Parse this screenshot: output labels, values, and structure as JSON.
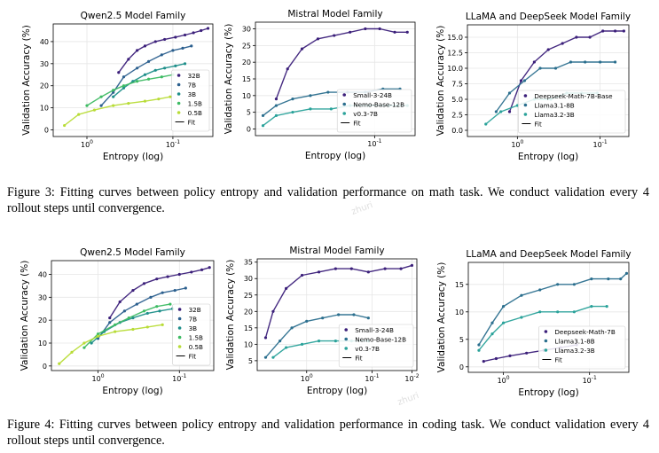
{
  "figures": [
    {
      "id": "fig3",
      "caption_label": "Figure 3:",
      "caption_text": "Fitting curves between policy entropy and validation performance on math task. We conduct validation every 4 rollout steps until convergence."
    },
    {
      "id": "fig4",
      "caption_label": "Figure 4:",
      "caption_text": "Fitting curves between policy entropy and validation performance in coding task. We conduct validation every 4 rollout steps until convergence."
    }
  ],
  "watermark": "zhuri",
  "chart_data": [
    {
      "id": "f3a",
      "type": "scatter",
      "title": "Qwen2.5 Model Family",
      "xlabel": "Entropy (log)",
      "ylabel": "Validation Accuracy (%)",
      "xscale": "log",
      "xlim": [
        0.065,
        0.5
      ],
      "ylim": [
        -3,
        48
      ],
      "xticks": [
        {
          "v": 0.1,
          "label": "10^0"
        },
        {
          "v": 0.3,
          "label": "10^-1"
        }
      ],
      "yticks": [
        0,
        10,
        20,
        30,
        40
      ],
      "legend": "right",
      "fit_label": "Fit",
      "series": [
        {
          "name": "32B",
          "color": "#3b1f7a",
          "x": [
            0.15,
            0.17,
            0.19,
            0.21,
            0.24,
            0.27,
            0.31,
            0.35,
            0.39,
            0.43,
            0.47
          ],
          "y": [
            26,
            32,
            36,
            38,
            40,
            41,
            42,
            43,
            44,
            45,
            46
          ]
        },
        {
          "name": "7B",
          "color": "#2b5f8e",
          "x": [
            0.12,
            0.14,
            0.16,
            0.19,
            0.22,
            0.26,
            0.3,
            0.34,
            0.38
          ],
          "y": [
            11,
            17,
            24,
            28,
            31,
            34,
            36,
            37,
            38
          ]
        },
        {
          "name": "3B",
          "color": "#1f8f8a",
          "x": [
            0.14,
            0.16,
            0.18,
            0.21,
            0.24,
            0.27,
            0.31,
            0.35
          ],
          "y": [
            15,
            19,
            22,
            25,
            27,
            28,
            29,
            30
          ]
        },
        {
          "name": "1.5B",
          "color": "#3dbb63",
          "x": [
            0.1,
            0.12,
            0.14,
            0.16,
            0.19,
            0.22,
            0.26,
            0.3
          ],
          "y": [
            11,
            15,
            18,
            20,
            22,
            23,
            24,
            25
          ]
        },
        {
          "name": "0.5B",
          "color": "#b8dc37",
          "x": [
            0.075,
            0.09,
            0.11,
            0.14,
            0.17,
            0.21,
            0.25,
            0.29
          ],
          "y": [
            2,
            7,
            9,
            11,
            12,
            13,
            14,
            15
          ]
        }
      ]
    },
    {
      "id": "f3b",
      "type": "scatter",
      "title": "Mistral Model Family",
      "xlabel": "Entropy (log)",
      "ylabel": "Validation Accuracy (%)",
      "xscale": "log",
      "xlim": [
        0.1,
        0.75
      ],
      "ylim": [
        -2,
        32
      ],
      "xticks": [
        {
          "v": 0.45,
          "label": "10^-1"
        }
      ],
      "yticks": [
        0,
        5,
        10,
        15,
        20,
        25,
        30
      ],
      "legend": "lower-right",
      "fit_label": "Fit",
      "series": [
        {
          "name": "Small-3-24B",
          "color": "#3b1f7a",
          "x": [
            0.13,
            0.15,
            0.18,
            0.22,
            0.27,
            0.33,
            0.4,
            0.48,
            0.58,
            0.68
          ],
          "y": [
            9,
            18,
            24,
            27,
            28,
            29,
            30,
            30,
            29,
            29
          ]
        },
        {
          "name": "Nemo-Base-12B",
          "color": "#2b6f8e",
          "x": [
            0.11,
            0.13,
            0.16,
            0.2,
            0.25,
            0.32,
            0.4,
            0.5,
            0.62
          ],
          "y": [
            4,
            7,
            9,
            10,
            11,
            11,
            11,
            12,
            12
          ]
        },
        {
          "name": "v0.3-7B",
          "color": "#2aa29a",
          "x": [
            0.11,
            0.13,
            0.16,
            0.2,
            0.26,
            0.33,
            0.42,
            0.54,
            0.68
          ],
          "y": [
            1,
            4,
            5,
            6,
            6,
            7,
            7,
            7,
            7
          ]
        }
      ]
    },
    {
      "id": "f3c",
      "type": "scatter",
      "title": "LLaMA and DeepSeek Model Family",
      "xlabel": "Entropy (log)",
      "ylabel": "Validation Accuracy (%)",
      "xscale": "log",
      "xlim": [
        0.12,
        0.85
      ],
      "ylim": [
        -1,
        17
      ],
      "xticks": [
        {
          "v": 0.22,
          "label": "10^0"
        },
        {
          "v": 0.6,
          "label": "10^-1"
        }
      ],
      "yticks": [
        0.0,
        2.5,
        5.0,
        7.5,
        10.0,
        12.5,
        15.0
      ],
      "legend": "lower-right",
      "fit_label": "Fit",
      "series": [
        {
          "name": "Deepseek-Math-7B-Base",
          "color": "#3b1f7a",
          "x": [
            0.2,
            0.23,
            0.27,
            0.32,
            0.38,
            0.45,
            0.53,
            0.62,
            0.72,
            0.8
          ],
          "y": [
            3,
            8,
            11,
            13,
            14,
            15,
            15,
            16,
            16,
            16
          ]
        },
        {
          "name": "Llama3.1-8B",
          "color": "#2b6f8e",
          "x": [
            0.17,
            0.2,
            0.24,
            0.29,
            0.35,
            0.42,
            0.5,
            0.6,
            0.72
          ],
          "y": [
            3,
            6,
            8,
            10,
            10,
            11,
            11,
            11,
            11
          ]
        },
        {
          "name": "Llama3.2-3B",
          "color": "#2aa29a",
          "x": [
            0.15,
            0.18,
            0.22,
            0.27,
            0.33,
            0.4,
            0.48,
            0.58
          ],
          "y": [
            1,
            3,
            4,
            5,
            5,
            6,
            6,
            6
          ]
        }
      ]
    },
    {
      "id": "f4a",
      "type": "scatter",
      "title": "Qwen2.5 Model Family",
      "xlabel": "Entropy (log)",
      "ylabel": "Validation Accuracy (%)",
      "xscale": "log",
      "xlim": [
        0.065,
        0.55
      ],
      "ylim": [
        -2,
        46
      ],
      "xticks": [
        {
          "v": 0.12,
          "label": "10^0"
        },
        {
          "v": 0.35,
          "label": "10^-1"
        }
      ],
      "yticks": [
        0,
        10,
        20,
        30,
        40
      ],
      "legend": "right",
      "fit_label": "Fit",
      "series": [
        {
          "name": "32B",
          "color": "#3b1f7a",
          "x": [
            0.14,
            0.16,
            0.19,
            0.22,
            0.26,
            0.3,
            0.35,
            0.41,
            0.47,
            0.52
          ],
          "y": [
            21,
            28,
            33,
            36,
            38,
            39,
            40,
            41,
            42,
            43
          ]
        },
        {
          "name": "7B",
          "color": "#2b5f8e",
          "x": [
            0.12,
            0.14,
            0.17,
            0.2,
            0.24,
            0.28,
            0.33,
            0.38
          ],
          "y": [
            12,
            19,
            24,
            27,
            30,
            32,
            33,
            34
          ]
        },
        {
          "name": "3B",
          "color": "#1f8f8a",
          "x": [
            0.11,
            0.13,
            0.16,
            0.19,
            0.23,
            0.27,
            0.32
          ],
          "y": [
            10,
            15,
            19,
            21,
            23,
            24,
            25
          ]
        },
        {
          "name": "1.5B",
          "color": "#3dbb63",
          "x": [
            0.1,
            0.12,
            0.15,
            0.18,
            0.22,
            0.26,
            0.31
          ],
          "y": [
            8,
            14,
            18,
            21,
            24,
            26,
            27
          ]
        },
        {
          "name": "0.5B",
          "color": "#b8dc37",
          "x": [
            0.072,
            0.085,
            0.1,
            0.12,
            0.15,
            0.19,
            0.23,
            0.28
          ],
          "y": [
            1,
            6,
            10,
            13,
            15,
            16,
            17,
            18
          ]
        }
      ]
    },
    {
      "id": "f4b",
      "type": "scatter",
      "title": "Mistral Model Family",
      "xlabel": "Entropy (log)",
      "ylabel": "Validation Accuracy (%)",
      "xscale": "log",
      "xlim": [
        0.08,
        0.75
      ],
      "ylim": [
        2,
        36
      ],
      "xticks": [
        {
          "v": 0.16,
          "label": "10^0"
        },
        {
          "v": 0.4,
          "label": "10^-1"
        },
        {
          "v": 0.7,
          "label": "10^-2"
        }
      ],
      "yticks": [
        5,
        10,
        15,
        20,
        25,
        30,
        35
      ],
      "legend": "lower-right",
      "fit_label": "Fit",
      "series": [
        {
          "name": "Small-3-24B",
          "color": "#3b1f7a",
          "x": [
            0.09,
            0.1,
            0.12,
            0.15,
            0.19,
            0.24,
            0.3,
            0.38,
            0.48,
            0.6,
            0.7
          ],
          "y": [
            12,
            20,
            27,
            31,
            32,
            33,
            33,
            32,
            33,
            33,
            34
          ]
        },
        {
          "name": "Nemo-Base-12B",
          "color": "#2b6f8e",
          "x": [
            0.09,
            0.11,
            0.13,
            0.16,
            0.2,
            0.25,
            0.31,
            0.38
          ],
          "y": [
            6,
            11,
            15,
            17,
            18,
            19,
            19,
            18
          ]
        },
        {
          "name": "v0.3-7B",
          "color": "#2aa29a",
          "x": [
            0.1,
            0.12,
            0.15,
            0.19,
            0.24,
            0.3,
            0.38
          ],
          "y": [
            6,
            9,
            10,
            11,
            11,
            11,
            11
          ]
        }
      ]
    },
    {
      "id": "f4c",
      "type": "scatter",
      "title": "LLaMA and DeepSeek Model Family",
      "xlabel": "Entropy (log)",
      "ylabel": "Validation Accuracy (%)",
      "xscale": "log",
      "xlim": [
        0.06,
        0.62
      ],
      "ylim": [
        -1,
        19
      ],
      "xticks": [
        {
          "v": 0.1,
          "label": "10^0"
        },
        {
          "v": 0.35,
          "label": "10^-1"
        }
      ],
      "yticks": [
        0,
        5,
        10,
        15
      ],
      "legend": "lower-right",
      "fit_label": "Fit",
      "series": [
        {
          "name": "Deepseek-Math-7B",
          "color": "#3b1f7a",
          "x": [
            0.075,
            0.09,
            0.11,
            0.14,
            0.18,
            0.23,
            0.29
          ],
          "y": [
            1,
            1.5,
            2,
            2.5,
            3,
            3.5,
            4
          ]
        },
        {
          "name": "Llama3.1-8B",
          "color": "#2b6f8e",
          "x": [
            0.07,
            0.085,
            0.1,
            0.13,
            0.17,
            0.22,
            0.28,
            0.36,
            0.46,
            0.55,
            0.6
          ],
          "y": [
            4,
            8,
            11,
            13,
            14,
            15,
            15,
            16,
            16,
            16,
            17
          ]
        },
        {
          "name": "Llama3.2-3B",
          "color": "#2aa29a",
          "x": [
            0.07,
            0.085,
            0.1,
            0.13,
            0.17,
            0.22,
            0.28,
            0.36,
            0.45
          ],
          "y": [
            3,
            6,
            8,
            9,
            10,
            10,
            10,
            11,
            11
          ]
        }
      ]
    }
  ]
}
